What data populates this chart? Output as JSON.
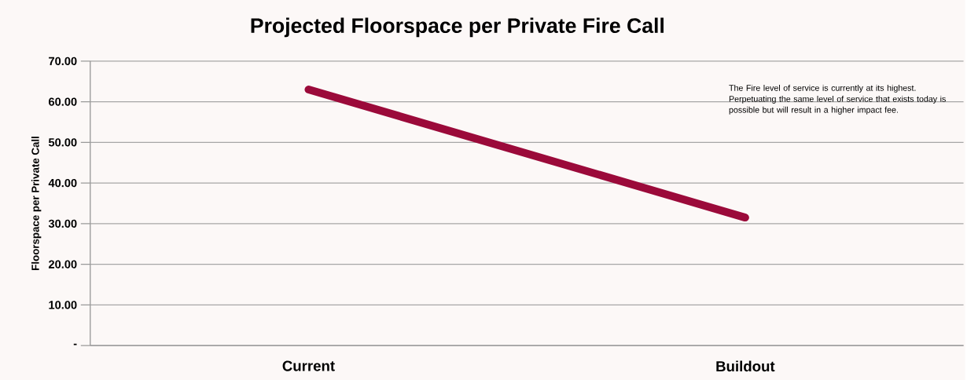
{
  "chart_data": {
    "type": "line",
    "title": "Projected Floorspace per Private Fire Call",
    "ylabel": "Floorspace per Private Call",
    "categories": [
      "Current",
      "Buildout"
    ],
    "series": [
      {
        "color": "#9b0a3a",
        "values": [
          63,
          31.5
        ]
      }
    ],
    "ylim": [
      0,
      70
    ],
    "yticks": [
      {
        "value": 0,
        "label": "-"
      },
      {
        "value": 10,
        "label": "10.00"
      },
      {
        "value": 20,
        "label": "20.00"
      },
      {
        "value": 30,
        "label": "30.00"
      },
      {
        "value": 40,
        "label": "40.00"
      },
      {
        "value": 50,
        "label": "50.00"
      },
      {
        "value": 60,
        "label": "60.00"
      },
      {
        "value": 70,
        "label": "70.00"
      }
    ],
    "grid": "y",
    "marker": "none",
    "line_style": "solid",
    "annotations": [
      "The Fire level of service is currently at its highest. Perpetuating the same level of service that exists today is possible but will result in a higher impact fee."
    ]
  }
}
